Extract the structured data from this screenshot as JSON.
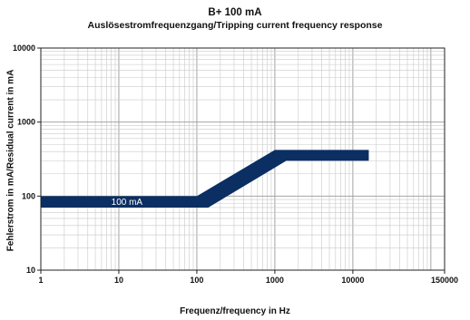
{
  "chart_data": {
    "type": "area",
    "title": "B+ 100 mA",
    "subtitle": "Auslösestromfrequenzgang/Tripping current frequency response",
    "xlabel": "Frequenz/frequency in Hz",
    "ylabel": "Fehlerstrom in mA/Residual current in mA",
    "x_scale": "log",
    "y_scale": "log",
    "xlim": [
      1,
      150000
    ],
    "ylim": [
      10,
      10000
    ],
    "grid": true,
    "x_ticks": [
      1,
      10,
      100,
      1000,
      10000,
      150000
    ],
    "x_tick_labels": [
      "1",
      "10",
      "100",
      "1000",
      "10000",
      "150000"
    ],
    "y_ticks": [
      10,
      100,
      1000,
      10000
    ],
    "y_tick_labels": [
      "10",
      "100",
      "1000",
      "10000"
    ],
    "band": {
      "color": "#0b2e63",
      "upper": [
        [
          1,
          100
        ],
        [
          100,
          100
        ],
        [
          1000,
          420
        ],
        [
          16000,
          420
        ]
      ],
      "lower": [
        [
          1,
          70
        ],
        [
          140,
          70
        ],
        [
          1400,
          300
        ],
        [
          16000,
          300
        ]
      ]
    },
    "annotations": [
      {
        "text": "100 mA",
        "x": 8,
        "y": 84
      }
    ]
  }
}
